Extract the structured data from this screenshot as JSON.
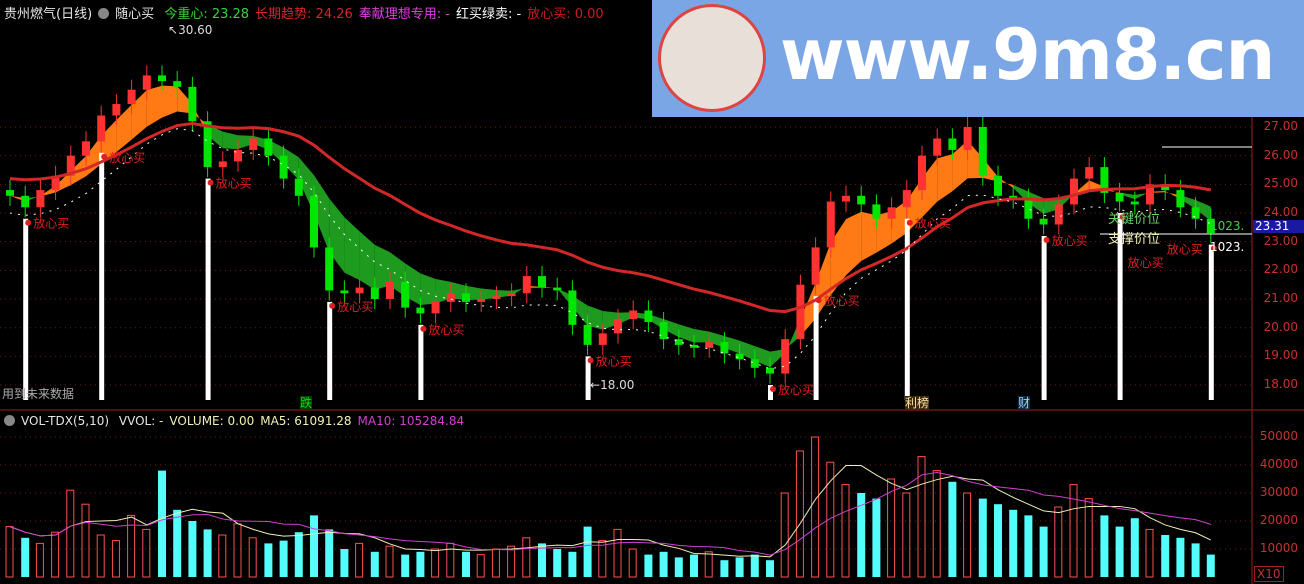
{
  "header": {
    "stock_name": "贵州燃气(日线)",
    "indicator_name": "随心买",
    "items": [
      {
        "label": "今重心: 23.28",
        "color": "#3cd23c"
      },
      {
        "label": "长期趋势: 24.26",
        "color": "#d22828"
      },
      {
        "label": "奉献理想专用: -",
        "color": "#e040e0"
      },
      {
        "label": "红买绿卖: -",
        "color": "#ffffff"
      },
      {
        "label": "放心买: 0.00",
        "color": "#c81e1e"
      }
    ]
  },
  "volume_header": {
    "name": "VOL-TDX(5,10)",
    "items": [
      {
        "label": "VVOL: -",
        "color": "#e6e6e6"
      },
      {
        "label": "VOLUME: 0.00",
        "color": "#f0f0b4"
      },
      {
        "label": "MA5: 61091.28",
        "color": "#f0f0b4"
      },
      {
        "label": "MA10: 105284.84",
        "color": "#d040d0"
      }
    ]
  },
  "watermark": {
    "text": "www.9m8.cn"
  },
  "annotations": {
    "high_label": "30.60",
    "low_label": "18.00",
    "future_data_note": "用到未来数据",
    "current_price": "23.31",
    "line_label_1": "1023.",
    "line_label_2": "1023.",
    "key_price": "关键价位",
    "support_price": "支撑价位",
    "buy_signal": "放心买",
    "volume_unit": "X10",
    "bottom_tags": [
      {
        "text": "跌",
        "color": "#00c800"
      },
      {
        "text": "利榜",
        "color": "#ffe0a0"
      },
      {
        "text": "财",
        "color": "#a0d0ff"
      }
    ]
  },
  "chart_data": [
    {
      "type": "candlestick",
      "title": "贵州燃气(日线)",
      "y_ticks": [
        "27.00",
        "26.00",
        "25.00",
        "24.00",
        "23.00",
        "22.00",
        "21.00",
        "20.00",
        "19.00",
        "18.00"
      ],
      "ylim": [
        17.6,
        30.8
      ],
      "close": [
        24.6,
        24.2,
        24.8,
        25.3,
        26.0,
        26.5,
        27.4,
        27.8,
        28.3,
        28.8,
        28.6,
        28.4,
        27.2,
        25.6,
        25.8,
        26.2,
        26.6,
        26.0,
        25.2,
        24.6,
        22.8,
        21.3,
        21.2,
        21.4,
        21.0,
        21.6,
        20.7,
        20.5,
        20.9,
        21.2,
        20.9,
        21.0,
        21.1,
        21.2,
        21.8,
        21.4,
        21.3,
        20.1,
        19.4,
        19.8,
        20.3,
        20.6,
        20.2,
        19.6,
        19.4,
        19.3,
        19.5,
        19.1,
        18.9,
        18.6,
        18.4,
        19.6,
        21.5,
        22.8,
        24.4,
        24.6,
        24.3,
        23.8,
        24.2,
        24.8,
        26.0,
        26.6,
        26.2,
        27.0,
        25.3,
        24.6,
        24.5,
        23.8,
        23.6,
        24.3,
        25.2,
        25.6,
        24.7,
        24.4,
        24.3,
        25.0,
        24.8,
        24.2,
        23.8,
        23.3
      ],
      "buy_signals": [
        1,
        6,
        13,
        21,
        27,
        38,
        50,
        53,
        59,
        68,
        73,
        79
      ],
      "colors": {
        "up": "#ff3232",
        "down": "#00e600",
        "long_trend": "#d22828",
        "band_down": "#1e9a1e",
        "band_up": "#ff7a14"
      }
    },
    {
      "type": "bar",
      "title": "VOL-TDX(5,10)",
      "y_ticks": [
        "50000",
        "40000",
        "30000",
        "20000",
        "10000"
      ],
      "ylim": [
        0,
        52000
      ],
      "values": [
        18000,
        14000,
        12000,
        16000,
        31000,
        26000,
        15000,
        13000,
        22000,
        17000,
        38000,
        24000,
        20000,
        17000,
        15000,
        19000,
        14000,
        12000,
        13000,
        16000,
        22000,
        17000,
        10000,
        12000,
        9000,
        11000,
        8000,
        9000,
        10000,
        12000,
        9000,
        8000,
        10000,
        11000,
        14000,
        12000,
        10000,
        9000,
        18000,
        13000,
        17000,
        10000,
        8000,
        9000,
        7000,
        8000,
        9000,
        6000,
        7000,
        8000,
        6000,
        30000,
        45000,
        50000,
        41000,
        33000,
        30000,
        28000,
        35000,
        30000,
        43000,
        38000,
        34000,
        30000,
        28000,
        26000,
        24000,
        22000,
        18000,
        25000,
        33000,
        28000,
        22000,
        18000,
        21000,
        17000,
        15000,
        14000,
        12000,
        8000
      ],
      "series": [
        {
          "name": "MA5",
          "color": "#f0f0b4"
        },
        {
          "name": "MA10",
          "color": "#d040d0"
        }
      ]
    }
  ]
}
